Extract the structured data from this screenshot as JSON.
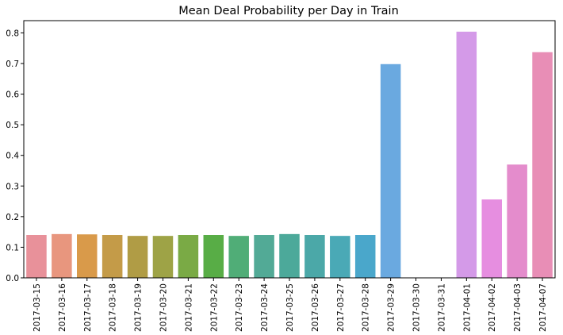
{
  "chart_data": {
    "type": "bar",
    "title": "Mean Deal Probability per Day in Train",
    "xlabel": "",
    "ylabel": "",
    "ylim": [
      0,
      0.84
    ],
    "yticks": [
      "0.0",
      "0.1",
      "0.2",
      "0.3",
      "0.4",
      "0.5",
      "0.6",
      "0.7",
      "0.8"
    ],
    "grid": false,
    "categories": [
      "2017-03-15",
      "2017-03-16",
      "2017-03-17",
      "2017-03-18",
      "2017-03-19",
      "2017-03-20",
      "2017-03-21",
      "2017-03-22",
      "2017-03-23",
      "2017-03-24",
      "2017-03-25",
      "2017-03-26",
      "2017-03-27",
      "2017-03-28",
      "2017-03-29",
      "2017-03-30",
      "2017-03-31",
      "2017-04-01",
      "2017-04-02",
      "2017-04-03",
      "2017-04-07"
    ],
    "values": [
      0.14,
      0.143,
      0.142,
      0.14,
      0.137,
      0.137,
      0.14,
      0.14,
      0.137,
      0.14,
      0.143,
      0.14,
      0.137,
      0.14,
      0.698,
      0.0,
      0.0,
      0.804,
      0.256,
      0.37,
      0.737
    ],
    "colors": [
      "#e8919a",
      "#e8967e",
      "#d99a4a",
      "#c49b48",
      "#b09c45",
      "#9ea346",
      "#7aaa45",
      "#58ad46",
      "#50ad77",
      "#52aa96",
      "#4ca99a",
      "#4ba8a8",
      "#4aa9b6",
      "#4aa7cb",
      "#6aa9e0",
      "#9cb1e8",
      "#bd9fe8",
      "#d49ae8",
      "#e68ee0",
      "#e48ccc",
      "#e88eb6"
    ]
  }
}
